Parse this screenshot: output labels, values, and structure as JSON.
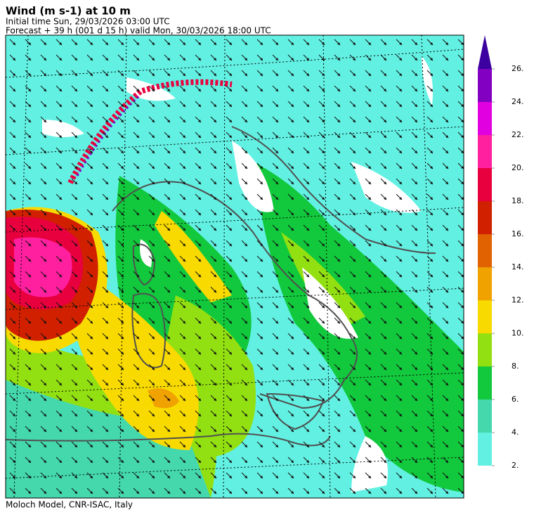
{
  "header": {
    "title": "Wind (m s-1) at 10 m",
    "initial_time": "Initial time  Sun, 29/03/2026  03:00 UTC",
    "forecast": "Forecast +  39 h  (001 d 15 h)  valid Mon, 30/03/2026 18:00 UTC"
  },
  "colorbar": {
    "ticks": [
      {
        "value": 2,
        "label": "2."
      },
      {
        "value": 4,
        "label": "4."
      },
      {
        "value": 6,
        "label": "6."
      },
      {
        "value": 8,
        "label": "8."
      },
      {
        "value": 10,
        "label": "10."
      },
      {
        "value": 12,
        "label": "12."
      },
      {
        "value": 14,
        "label": "14."
      },
      {
        "value": 16,
        "label": "16."
      },
      {
        "value": 18,
        "label": "18."
      },
      {
        "value": 20,
        "label": "20."
      },
      {
        "value": 22,
        "label": "22."
      },
      {
        "value": 24,
        "label": "24."
      },
      {
        "value": 26,
        "label": "26."
      }
    ],
    "colors": [
      "#62f0e2",
      "#44d8ac",
      "#12c83c",
      "#92e012",
      "#f8da00",
      "#f0a200",
      "#e06200",
      "#d02000",
      "#e8003e",
      "#ff20a0",
      "#e000e0",
      "#8200c2",
      "#3c00a0"
    ]
  },
  "footer": "Moloch Model, CNR-ISAC, Italy"
}
